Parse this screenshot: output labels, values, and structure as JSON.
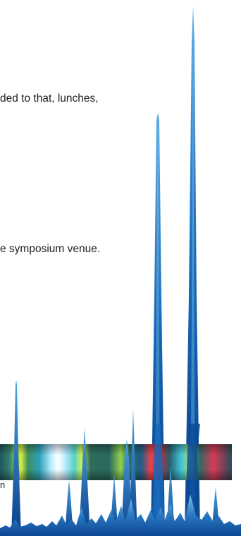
{
  "document": {
    "lines": [
      "ded to that, lunches,",
      "e symposium venue.",
      "n"
    ]
  },
  "decoration": {
    "name": "spectrum-graphic",
    "colors": {
      "peak_dark": "#0a3f8a",
      "peak_mid": "#1669b8",
      "peak_light": "#3b96d6",
      "band_green": "#8fd14f",
      "band_white": "#f6fbff",
      "band_red": "#e8424a",
      "band_cyan": "#3fc2d8"
    }
  }
}
